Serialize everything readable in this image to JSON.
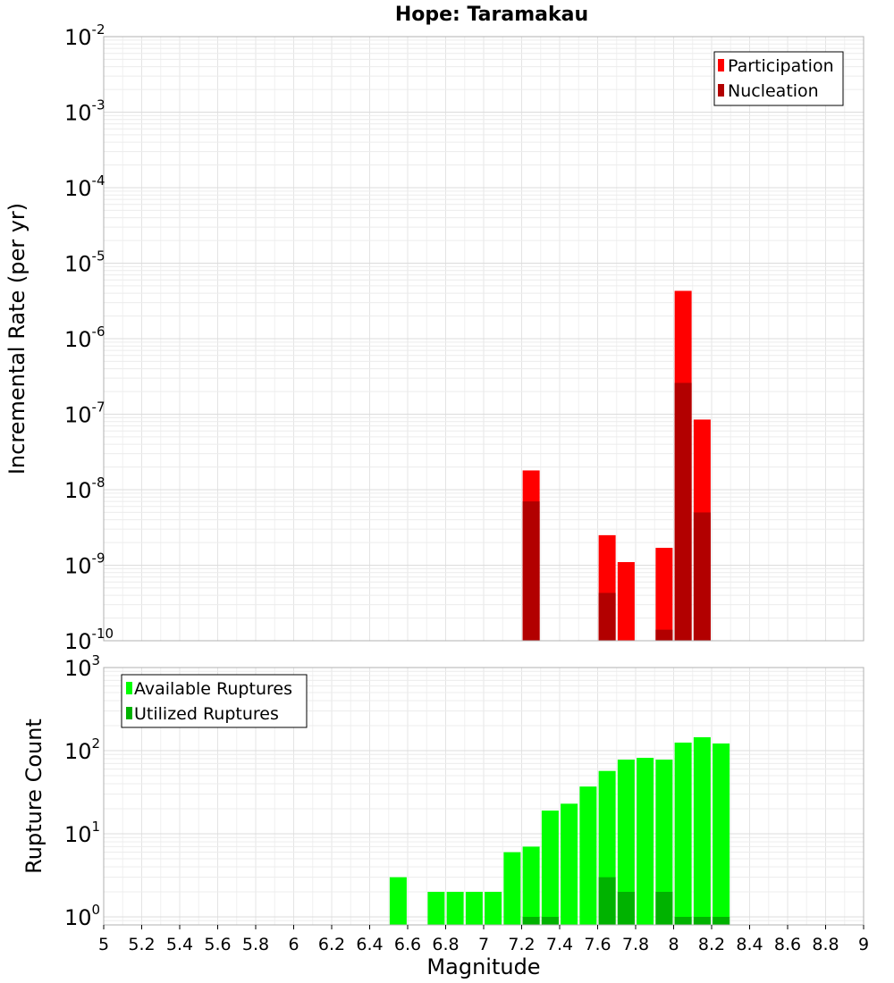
{
  "chart_data": [
    {
      "type": "bar",
      "title": "Hope: Taramakau",
      "xlabel": "",
      "ylabel": "Incremental Rate (per yr)",
      "yscale": "log",
      "ylim": [
        1e-10,
        0.01
      ],
      "xlim": [
        5,
        9
      ],
      "grid": true,
      "legend_position": "top-right",
      "y_ticks": [
        {
          "base": "10",
          "exp": "-10"
        },
        {
          "base": "10",
          "exp": "-9"
        },
        {
          "base": "10",
          "exp": "-8"
        },
        {
          "base": "10",
          "exp": "-7"
        },
        {
          "base": "10",
          "exp": "-6"
        },
        {
          "base": "10",
          "exp": "-5"
        },
        {
          "base": "10",
          "exp": "-4"
        },
        {
          "base": "10",
          "exp": "-3"
        },
        {
          "base": "10",
          "exp": "-2"
        }
      ],
      "series": [
        {
          "name": "Participation",
          "color": "#ff0000",
          "points": [
            {
              "x": 7.25,
              "y": 1.8e-08
            },
            {
              "x": 7.65,
              "y": 2.5e-09
            },
            {
              "x": 7.75,
              "y": 1.1e-09
            },
            {
              "x": 7.95,
              "y": 1.7e-09
            },
            {
              "x": 8.05,
              "y": 4.3e-06
            },
            {
              "x": 8.15,
              "y": 8.5e-08
            }
          ]
        },
        {
          "name": "Nucleation",
          "color": "#b20000",
          "points": [
            {
              "x": 7.25,
              "y": 7e-09
            },
            {
              "x": 7.65,
              "y": 4.3e-10
            },
            {
              "x": 7.95,
              "y": 1.4e-10
            },
            {
              "x": 8.05,
              "y": 2.6e-07
            },
            {
              "x": 8.15,
              "y": 5e-09
            }
          ]
        }
      ]
    },
    {
      "type": "bar",
      "title": "",
      "xlabel": "Magnitude",
      "ylabel": "Rupture Count",
      "yscale": "log",
      "ylim": [
        0.8,
        1000
      ],
      "xlim": [
        5,
        9
      ],
      "grid": true,
      "legend_position": "top-left",
      "x_tick_labels": [
        "5",
        "5.2",
        "5.4",
        "5.6",
        "5.8",
        "6",
        "6.2",
        "6.4",
        "6.6",
        "6.8",
        "7",
        "7.2",
        "7.4",
        "7.6",
        "7.8",
        "8",
        "8.2",
        "8.4",
        "8.6",
        "8.8",
        "9"
      ],
      "y_ticks": [
        {
          "base": "10",
          "exp": "0"
        },
        {
          "base": "10",
          "exp": "1"
        },
        {
          "base": "10",
          "exp": "2"
        },
        {
          "base": "10",
          "exp": "3"
        }
      ],
      "series": [
        {
          "name": "Available Ruptures",
          "color": "#00ff00",
          "points": [
            {
              "x": 6.55,
              "y": 3
            },
            {
              "x": 6.75,
              "y": 2
            },
            {
              "x": 6.85,
              "y": 2
            },
            {
              "x": 6.95,
              "y": 2
            },
            {
              "x": 7.05,
              "y": 2
            },
            {
              "x": 7.15,
              "y": 6
            },
            {
              "x": 7.25,
              "y": 7
            },
            {
              "x": 7.35,
              "y": 19
            },
            {
              "x": 7.45,
              "y": 23
            },
            {
              "x": 7.55,
              "y": 37
            },
            {
              "x": 7.65,
              "y": 57
            },
            {
              "x": 7.75,
              "y": 78
            },
            {
              "x": 7.85,
              "y": 82
            },
            {
              "x": 7.95,
              "y": 78
            },
            {
              "x": 8.05,
              "y": 125
            },
            {
              "x": 8.15,
              "y": 145
            },
            {
              "x": 8.25,
              "y": 122
            }
          ]
        },
        {
          "name": "Utilized Ruptures",
          "color": "#00b200",
          "points": [
            {
              "x": 7.25,
              "y": 1
            },
            {
              "x": 7.35,
              "y": 1
            },
            {
              "x": 7.65,
              "y": 3
            },
            {
              "x": 7.75,
              "y": 2
            },
            {
              "x": 7.95,
              "y": 2
            },
            {
              "x": 8.05,
              "y": 1
            },
            {
              "x": 8.15,
              "y": 1
            },
            {
              "x": 8.25,
              "y": 1
            }
          ]
        }
      ]
    }
  ]
}
